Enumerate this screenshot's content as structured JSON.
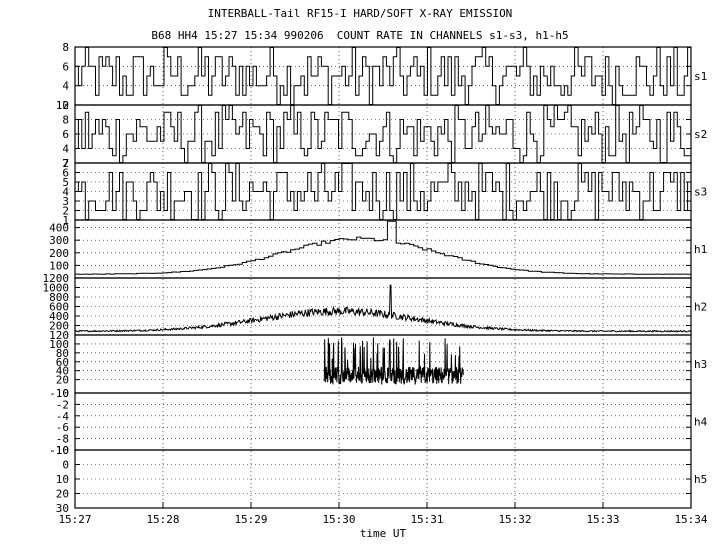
{
  "header": {
    "title": "INTERBALL-Tail RF15-I HARD/SOFT X-RAY EMISSION",
    "subtitle": "B68 HH4 15:27 15:34 990206  COUNT RATE IN CHANNELS s1-s3, h1-h5"
  },
  "chart_data": {
    "type": "line",
    "style": "step",
    "title": "INTERBALL-Tail RF15-I HARD/SOFT X-RAY EMISSION",
    "subtitle": "B68 HH4 15:27 15:34 990206  COUNT RATE IN CHANNELS s1-s3, h1-h5",
    "xlabel": "time UT",
    "x_ticks": [
      "15:27",
      "15:28",
      "15:29",
      "15:30",
      "15:31",
      "15:32",
      "15:33",
      "15:34"
    ],
    "x_range": [
      "15:27",
      "15:34"
    ],
    "grid": true,
    "panels": [
      {
        "name": "s1",
        "ylim": [
          2,
          8
        ],
        "inverted": false,
        "yticks": [
          2,
          4,
          6,
          8
        ],
        "description": "noisy integer counts fluctuating between 2 and 8"
      },
      {
        "name": "s2",
        "ylim": [
          2,
          10
        ],
        "inverted": false,
        "yticks": [
          2,
          4,
          6,
          8,
          10
        ],
        "description": "noisy integer counts fluctuating between 2 and 10"
      },
      {
        "name": "s3",
        "ylim": [
          1,
          7
        ],
        "inverted": false,
        "yticks": [
          1,
          2,
          3,
          4,
          5,
          6,
          7
        ],
        "description": "noisy integer counts fluctuating between 1 and 7"
      },
      {
        "name": "h1",
        "ylim": [
          0,
          460
        ],
        "inverted": false,
        "yticks": [
          100,
          200,
          300,
          400
        ],
        "profile": {
          "base": 30,
          "peak": 310,
          "peak_time": "15:30:15",
          "spike_time": "15:30:35",
          "spike_value": 450
        }
      },
      {
        "name": "h2",
        "ylim": [
          0,
          1200
        ],
        "inverted": false,
        "yticks": [
          200,
          400,
          600,
          800,
          1000,
          1200
        ],
        "profile": {
          "base": 80,
          "peak": 500,
          "peak_time": "15:30:00",
          "spike_time": "15:30:35",
          "spike_value": 1050
        }
      },
      {
        "name": "h3",
        "ylim": [
          -10,
          120
        ],
        "inverted": false,
        "yticks": [
          -10,
          20,
          40,
          60,
          80,
          100,
          120
        ],
        "profile": {
          "start": "15:29:50",
          "end": "15:31:25",
          "baseline": 25,
          "max": 115
        }
      },
      {
        "name": "h4",
        "ylim": [
          -10,
          0
        ],
        "inverted": false,
        "yticks": [
          -10,
          -8,
          -6,
          -4,
          -2,
          0
        ]
      },
      {
        "name": "h5",
        "ylim": [
          -10,
          30
        ],
        "inverted": true,
        "yticks": [
          -10,
          0,
          10,
          20,
          30
        ]
      }
    ]
  }
}
